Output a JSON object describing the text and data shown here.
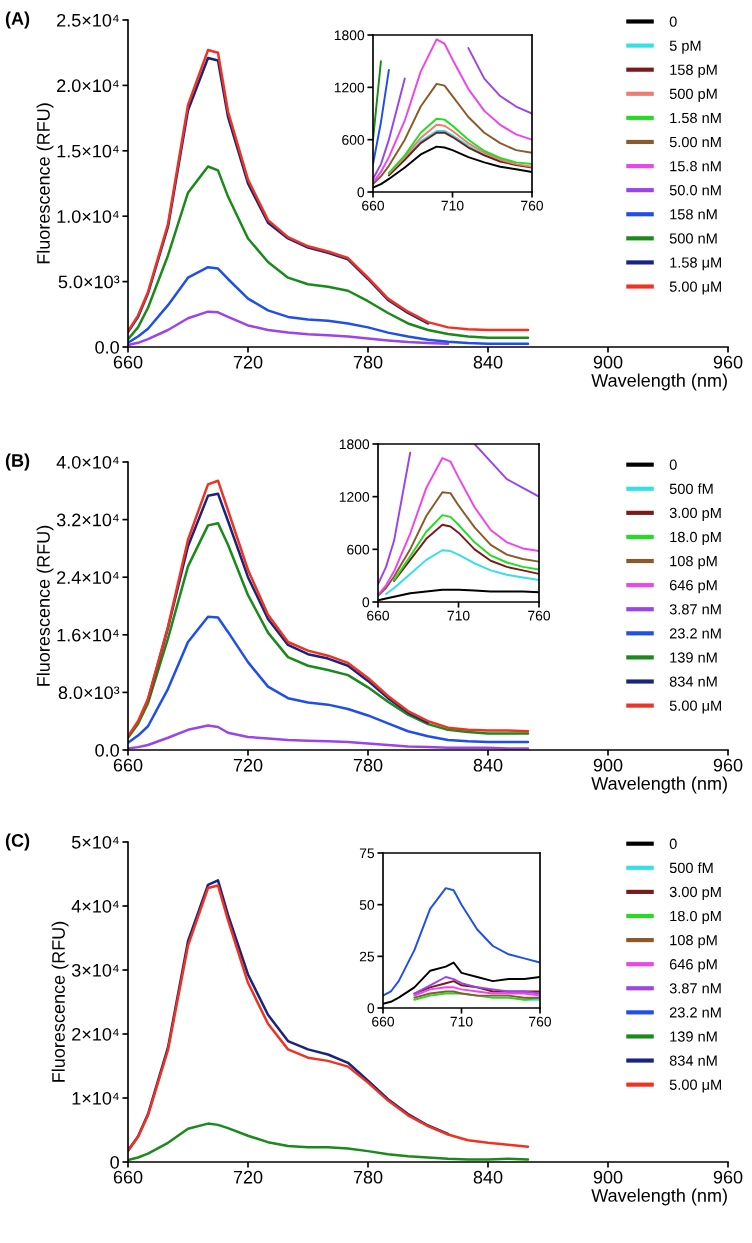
{
  "chart_data": [
    {
      "type": "line",
      "title": "(A)",
      "xlabel": "Wavelength (nm)",
      "ylabel": "Fluorescence (RFU)",
      "legend": "right",
      "x": [
        660,
        665,
        670,
        680,
        690,
        700,
        705,
        710,
        720,
        730,
        740,
        750,
        760,
        770,
        780,
        790,
        800,
        810,
        820,
        830,
        840,
        850,
        860
      ],
      "xlim": [
        660,
        960
      ],
      "xticks": [
        660,
        720,
        780,
        840,
        900,
        960
      ],
      "ylim": [
        0,
        25000
      ],
      "yticks": [
        {
          "value": 0,
          "label": "0.0"
        },
        {
          "value": 5000,
          "label": "5.0×10³"
        },
        {
          "value": 10000,
          "label": "1.0×10⁴"
        },
        {
          "value": 15000,
          "label": "1.5×10⁴"
        },
        {
          "value": 20000,
          "label": "2.0×10⁴"
        },
        {
          "value": 25000,
          "label": "2.5×10⁴"
        }
      ],
      "series": [
        {
          "name": "50.0 nM",
          "color": "#9b44e8",
          "values": [
            150,
            320,
            600,
            1300,
            2200,
            2700,
            2650,
            2300,
            1650,
            1300,
            1100,
            980,
            900,
            800,
            650,
            500,
            380,
            300,
            250,
            null,
            null,
            null,
            null
          ]
        },
        {
          "name": "158 nM",
          "color": "#1f4fe8",
          "values": [
            320,
            800,
            1400,
            3200,
            5300,
            6100,
            6000,
            5200,
            3700,
            2800,
            2300,
            2100,
            2000,
            1800,
            1500,
            1100,
            800,
            550,
            400,
            300,
            250,
            250,
            250
          ]
        },
        {
          "name": "500 nM",
          "color": "#1a8a1a",
          "values": [
            600,
            1500,
            3000,
            7000,
            11800,
            13800,
            13500,
            11500,
            8300,
            6500,
            5300,
            4800,
            4600,
            4300,
            3500,
            2600,
            1800,
            1300,
            1000,
            800,
            700,
            700,
            700
          ]
        },
        {
          "name": "1.58 μM",
          "color": "#1a237e",
          "values": [
            1150,
            2300,
            4100,
            9200,
            18100,
            22100,
            21900,
            17600,
            12500,
            9500,
            8300,
            7600,
            7200,
            6700,
            5200,
            3600,
            2600,
            1800,
            null,
            null,
            null,
            null,
            null
          ]
        },
        {
          "name": "5.00 μM",
          "color": "#ee3322",
          "values": [
            1200,
            2400,
            4200,
            9400,
            18500,
            22700,
            22500,
            18000,
            12800,
            9700,
            8400,
            7700,
            7300,
            6800,
            5300,
            3700,
            2700,
            1900,
            1500,
            1350,
            1300,
            1300,
            1300
          ]
        }
      ]
    },
    {
      "type": "line",
      "x": [
        660,
        665,
        670,
        680,
        690,
        700,
        705,
        710,
        720,
        730,
        740,
        750,
        760
      ],
      "xlim": [
        660,
        760
      ],
      "xticks": [
        660,
        710,
        760
      ],
      "ylim": [
        0,
        1800
      ],
      "yticks": [
        0,
        600,
        1200,
        1800
      ],
      "legend": "right",
      "series": [
        {
          "name": "0",
          "color": "#000000",
          "values": [
            50,
            90,
            150,
            280,
            430,
            520,
            510,
            480,
            400,
            340,
            290,
            260,
            230
          ]
        },
        {
          "name": "5 pM",
          "color": "#33e0e8",
          "values": [
            null,
            null,
            200,
            380,
            580,
            700,
            700,
            650,
            530,
            430,
            360,
            null,
            null
          ]
        },
        {
          "name": "158 pM",
          "color": "#7b1a1a",
          "values": [
            null,
            null,
            190,
            370,
            560,
            680,
            680,
            630,
            510,
            420,
            350,
            310,
            280
          ]
        },
        {
          "name": "500 pM",
          "color": "#f07a70",
          "values": [
            null,
            null,
            210,
            400,
            620,
            770,
            760,
            700,
            560,
            450,
            370,
            320,
            290
          ]
        },
        {
          "name": "1.58 nM",
          "color": "#22dd22",
          "values": [
            null,
            null,
            220,
            420,
            680,
            840,
            830,
            760,
            600,
            470,
            390,
            340,
            320
          ]
        },
        {
          "name": "5.00 nM",
          "color": "#8b5a2b",
          "values": [
            90,
            180,
            300,
            600,
            980,
            1240,
            1220,
            1100,
            860,
            680,
            560,
            480,
            450
          ]
        },
        {
          "name": "15.8 nM",
          "color": "#ee44ee",
          "values": [
            110,
            230,
            400,
            820,
            1380,
            1750,
            1700,
            1520,
            1180,
            930,
            770,
            660,
            600
          ]
        },
        {
          "color": "#9b44e8",
          "values": [
            150,
            320,
            600,
            1300,
            null,
            null,
            null,
            null,
            1650,
            1300,
            1100,
            980,
            900
          ]
        },
        {
          "color": "#1f4fe8",
          "values": [
            320,
            800,
            1400,
            null,
            null,
            null,
            null,
            null,
            null,
            null,
            null,
            null,
            null
          ]
        },
        {
          "color": "#1a8a1a",
          "values": [
            600,
            1500,
            null,
            null,
            null,
            null,
            null,
            null,
            null,
            null,
            null,
            null,
            null
          ]
        }
      ]
    },
    {
      "type": "line",
      "title": "(B)",
      "xlabel": "Wavelength (nm)",
      "ylabel": "Fluorescence (RFU)",
      "legend": "right",
      "x": [
        660,
        665,
        670,
        680,
        690,
        700,
        705,
        710,
        720,
        730,
        740,
        750,
        760,
        770,
        780,
        790,
        800,
        810,
        820,
        830,
        840,
        850,
        860
      ],
      "xlim": [
        660,
        960
      ],
      "xticks": [
        660,
        720,
        780,
        840,
        900,
        960
      ],
      "ylim": [
        0,
        40000
      ],
      "yticks": [
        {
          "value": 0,
          "label": "0.0"
        },
        {
          "value": 8000,
          "label": "8.0×10³"
        },
        {
          "value": 16000,
          "label": "1.6×10⁴"
        },
        {
          "value": 24000,
          "label": "2.4×10⁴"
        },
        {
          "value": 32000,
          "label": "3.2×10⁴"
        },
        {
          "value": 40000,
          "label": "4.0×10⁴"
        }
      ],
      "series": [
        {
          "name": "3.87 nM",
          "color": "#9b44e8",
          "values": [
            200,
            400,
            700,
            1700,
            2800,
            3400,
            3200,
            2400,
            1800,
            1600,
            1400,
            1300,
            1200,
            1100,
            900,
            700,
            500,
            400,
            300,
            300,
            300,
            200,
            200
          ]
        },
        {
          "name": "23.2 nM",
          "color": "#1f4fe8",
          "values": [
            1000,
            2000,
            3300,
            8500,
            15000,
            18500,
            18400,
            16400,
            12200,
            8800,
            7200,
            6600,
            6300,
            5700,
            4800,
            3700,
            2600,
            1900,
            1400,
            1200,
            1100,
            1100,
            1100
          ]
        },
        {
          "name": "139 nM",
          "color": "#1a8a1a",
          "values": [
            1700,
            3600,
            6500,
            15500,
            25500,
            31200,
            31500,
            28500,
            21500,
            16300,
            12900,
            11700,
            11100,
            10400,
            8700,
            6700,
            4900,
            3600,
            2800,
            2500,
            2300,
            2300,
            2300
          ]
        },
        {
          "name": "834 nM",
          "color": "#1a237e",
          "values": [
            null,
            null,
            7000,
            17000,
            28300,
            35300,
            35600,
            31800,
            24000,
            18200,
            14600,
            13300,
            12700,
            11700,
            9600,
            7200,
            5200,
            3800,
            null,
            null,
            null,
            null,
            null
          ]
        },
        {
          "name": "5.00 μM",
          "color": "#ee3322",
          "values": [
            1900,
            4000,
            7100,
            17100,
            29200,
            36900,
            37400,
            33300,
            25000,
            18800,
            15000,
            13800,
            13100,
            12100,
            10000,
            7500,
            5400,
            4000,
            3100,
            2800,
            2700,
            2700,
            2600
          ]
        }
      ]
    },
    {
      "type": "line",
      "x": [
        660,
        665,
        670,
        680,
        690,
        700,
        705,
        710,
        720,
        730,
        740,
        750,
        760
      ],
      "xlim": [
        660,
        760
      ],
      "xticks": [
        660,
        710,
        760
      ],
      "ylim": [
        0,
        1800
      ],
      "yticks": [
        0,
        600,
        1200,
        1800
      ],
      "legend": "right",
      "series": [
        {
          "name": "0",
          "color": "#000000",
          "values": [
            20,
            40,
            60,
            100,
            120,
            140,
            140,
            140,
            130,
            120,
            120,
            120,
            110
          ]
        },
        {
          "name": "500 fM",
          "color": "#33e0e8",
          "values": [
            null,
            90,
            160,
            320,
            480,
            590,
            580,
            540,
            440,
            360,
            310,
            280,
            250
          ]
        },
        {
          "name": "3.00 pM",
          "color": "#7b1a1a",
          "values": [
            null,
            null,
            240,
            480,
            720,
            880,
            860,
            790,
            600,
            470,
            400,
            360,
            320
          ]
        },
        {
          "name": "18.0 pM",
          "color": "#22dd22",
          "values": [
            null,
            null,
            250,
            520,
            800,
            990,
            970,
            880,
            680,
            530,
            450,
            400,
            370
          ]
        },
        {
          "name": "108 pM",
          "color": "#8b5a2b",
          "values": [
            70,
            160,
            290,
            600,
            980,
            1250,
            1240,
            1100,
            850,
            650,
            540,
            490,
            460
          ]
        },
        {
          "name": "646 pM",
          "color": "#ee44ee",
          "values": [
            80,
            190,
            350,
            780,
            1300,
            1640,
            1600,
            1420,
            1080,
            820,
            680,
            610,
            580
          ]
        },
        {
          "color": "#9b44e8",
          "values": [
            200,
            400,
            700,
            1700,
            null,
            null,
            null,
            null,
            1800,
            1600,
            1400,
            1300,
            1200
          ]
        }
      ]
    },
    {
      "type": "line",
      "title": "(C)",
      "xlabel": "Wavelength (nm)",
      "ylabel": "Fluorescence (RFU)",
      "legend": "right",
      "x": [
        660,
        665,
        670,
        680,
        690,
        700,
        705,
        710,
        720,
        730,
        740,
        750,
        760,
        770,
        780,
        790,
        800,
        810,
        820,
        830,
        840,
        850,
        860
      ],
      "xlim": [
        660,
        960
      ],
      "xticks": [
        660,
        720,
        780,
        840,
        900,
        960
      ],
      "ylim": [
        0,
        50000
      ],
      "yticks": [
        {
          "value": 0,
          "label": "0"
        },
        {
          "value": 10000,
          "label": "1×10⁴"
        },
        {
          "value": 20000,
          "label": "2×10⁴"
        },
        {
          "value": 30000,
          "label": "3×10⁴"
        },
        {
          "value": 40000,
          "label": "4×10⁴"
        },
        {
          "value": 50000,
          "label": "5×10⁴"
        }
      ],
      "series": [
        {
          "name": "139 nM",
          "color": "#1a8a1a",
          "values": [
            300,
            700,
            1300,
            3000,
            5200,
            6000,
            5800,
            5300,
            4100,
            3100,
            2500,
            2300,
            2300,
            2100,
            1700,
            1200,
            900,
            700,
            500,
            400,
            400,
            500,
            400
          ]
        },
        {
          "name": "834 nM",
          "color": "#1a237e",
          "values": [
            1800,
            4000,
            7500,
            17900,
            34500,
            43300,
            44000,
            38600,
            29300,
            23000,
            18900,
            17600,
            16800,
            15500,
            12700,
            9800,
            7500,
            5700,
            4400,
            null,
            null,
            null,
            null
          ]
        },
        {
          "name": "5.00 μM",
          "color": "#ee3322",
          "values": [
            1700,
            3900,
            7300,
            17500,
            33800,
            42800,
            43200,
            37800,
            28000,
            21600,
            17600,
            16300,
            15800,
            14900,
            12400,
            9600,
            7300,
            5600,
            4300,
            3400,
            3000,
            2700,
            2400
          ]
        }
      ]
    },
    {
      "type": "line",
      "x": [
        660,
        665,
        670,
        680,
        690,
        700,
        705,
        710,
        720,
        730,
        740,
        750,
        760
      ],
      "xlim": [
        660,
        760
      ],
      "xticks": [
        660,
        710,
        760
      ],
      "ylim": [
        0,
        75
      ],
      "yticks": [
        0,
        25,
        50,
        75
      ],
      "legend": "right",
      "series": [
        {
          "name": "0",
          "color": "#000000",
          "values": [
            2,
            3,
            5,
            10,
            18,
            20,
            22,
            17,
            15,
            13,
            14,
            14,
            15
          ]
        },
        {
          "name": "500 fM",
          "color": "#33e0e8",
          "values": [
            null,
            null,
            null,
            null,
            null,
            null,
            null,
            null,
            null,
            null,
            null,
            4,
            4
          ]
        },
        {
          "name": "3.00 pM",
          "color": "#7b1a1a",
          "values": [
            null,
            null,
            null,
            7,
            10,
            12,
            13,
            11,
            10,
            8,
            8,
            8,
            8
          ]
        },
        {
          "name": "18.0 pM",
          "color": "#22dd22",
          "values": [
            null,
            null,
            null,
            4,
            6,
            7,
            7,
            7,
            6,
            5,
            5,
            4,
            5
          ]
        },
        {
          "name": "108 pM",
          "color": "#8b5a2b",
          "values": [
            null,
            null,
            null,
            5,
            7,
            8,
            8,
            7,
            6,
            6,
            6,
            5,
            5
          ]
        },
        {
          "name": "646 pM",
          "color": "#ee44ee",
          "values": [
            null,
            null,
            null,
            6,
            9,
            10,
            10,
            9,
            8,
            7,
            7,
            7,
            6
          ]
        },
        {
          "name": "3.87 nM",
          "color": "#9b44e8",
          "values": [
            null,
            null,
            null,
            7,
            11,
            15,
            14,
            12,
            10,
            9,
            8,
            8,
            7
          ]
        },
        {
          "name": "23.2 nM",
          "color": "#1f4fe8",
          "values": [
            6,
            8,
            13,
            28,
            48,
            58,
            57,
            50,
            38,
            30,
            26,
            24,
            22
          ]
        }
      ]
    }
  ]
}
